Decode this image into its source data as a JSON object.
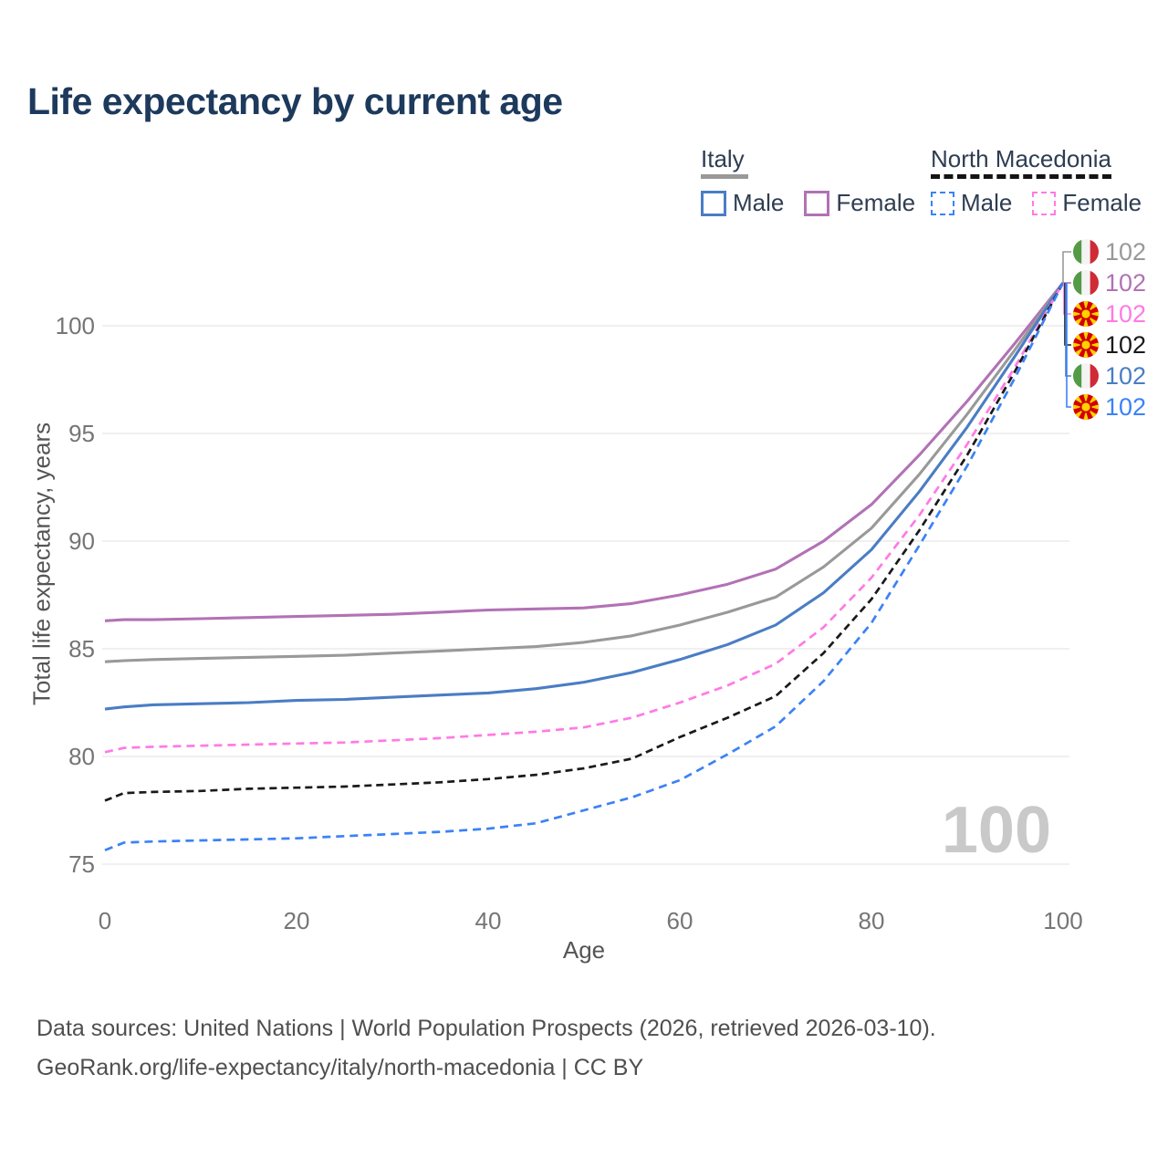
{
  "title": "Life expectancy by current age",
  "axes": {
    "x_label": "Age",
    "y_label": "Total life expectancy, years"
  },
  "watermark": "100",
  "footer": {
    "line1": "Data sources: United Nations | World Population Prospects (2026, retrieved 2026-03-10).",
    "line2": "GeoRank.org/life-expectancy/italy/north-macedonia | CC BY"
  },
  "colors": {
    "title": "#1d3a5c",
    "grid": "#ececec",
    "tick": "#757575",
    "italy_male": "#4a7dc4",
    "italy_female": "#b272b5",
    "italy_all": "#999999",
    "nm_male": "#3b82f6",
    "nm_female": "#ff7ae5",
    "nm_all": "#1a1a1a",
    "watermark": "#c9c9c9"
  },
  "legend": {
    "groups": [
      {
        "label": "Italy",
        "underline_color": "#999999",
        "underline_dashed": false,
        "underline_width": 52,
        "items": [
          {
            "label": "Male",
            "color": "#4a7dc4",
            "dashed": false
          },
          {
            "label": "Female",
            "color": "#b272b5",
            "dashed": false
          }
        ]
      },
      {
        "label": "North Macedonia",
        "underline_color": "#141414",
        "underline_dashed": true,
        "underline_width": 198,
        "items": [
          {
            "label": "Male",
            "color": "#3b82f6",
            "dashed": true
          },
          {
            "label": "Female",
            "color": "#ff7ae5",
            "dashed": true
          }
        ]
      }
    ]
  },
  "end_labels": [
    {
      "flag": "italy",
      "value": "102",
      "color": "#999999"
    },
    {
      "flag": "italy",
      "value": "102",
      "color": "#b272b5"
    },
    {
      "flag": "north-macedonia",
      "value": "102",
      "color": "#ff7ae5"
    },
    {
      "flag": "north-macedonia",
      "value": "102",
      "color": "#1a1a1a"
    },
    {
      "flag": "italy",
      "value": "102",
      "color": "#4a7dc4"
    },
    {
      "flag": "north-macedonia",
      "value": "102",
      "color": "#3b82f6"
    }
  ],
  "chart_data": {
    "type": "line",
    "title": "Life expectancy by current age",
    "xlabel": "Age",
    "ylabel": "Total life expectancy, years",
    "xlim": [
      0,
      100
    ],
    "ylim": [
      74.5,
      103
    ],
    "xticks": [
      0,
      20,
      40,
      60,
      80,
      100
    ],
    "yticks": [
      75,
      80,
      85,
      90,
      95,
      100
    ],
    "grid": true,
    "legend_position": "top-right",
    "x": [
      0,
      2,
      5,
      10,
      15,
      20,
      25,
      30,
      35,
      40,
      45,
      50,
      55,
      60,
      65,
      70,
      75,
      80,
      85,
      90,
      95,
      100
    ],
    "series": [
      {
        "name": "Italy Female",
        "country": "italy",
        "sex": "female",
        "color": "#b272b5",
        "dashed": false,
        "values": [
          86.3,
          86.35,
          86.35,
          86.4,
          86.45,
          86.5,
          86.55,
          86.6,
          86.7,
          86.8,
          86.85,
          86.9,
          87.1,
          87.5,
          88.0,
          88.7,
          90.0,
          91.7,
          94.0,
          96.5,
          99.2,
          102
        ]
      },
      {
        "name": "Italy",
        "country": "italy",
        "sex": "all",
        "color": "#999999",
        "dashed": false,
        "values": [
          84.4,
          84.45,
          84.5,
          84.55,
          84.6,
          84.65,
          84.7,
          84.8,
          84.9,
          85.0,
          85.1,
          85.3,
          85.6,
          86.1,
          86.7,
          87.4,
          88.8,
          90.6,
          93.1,
          95.9,
          98.9,
          102
        ]
      },
      {
        "name": "Italy Male",
        "country": "italy",
        "sex": "male",
        "color": "#4a7dc4",
        "dashed": false,
        "values": [
          82.2,
          82.3,
          82.4,
          82.45,
          82.5,
          82.6,
          82.65,
          82.75,
          82.85,
          82.95,
          83.15,
          83.45,
          83.9,
          84.5,
          85.2,
          86.1,
          87.6,
          89.6,
          92.3,
          95.3,
          98.6,
          102
        ]
      },
      {
        "name": "North Macedonia Female",
        "country": "north-macedonia",
        "sex": "female",
        "color": "#ff7ae5",
        "dashed": true,
        "values": [
          80.2,
          80.4,
          80.45,
          80.5,
          80.55,
          80.6,
          80.65,
          80.75,
          80.85,
          81.0,
          81.15,
          81.35,
          81.8,
          82.5,
          83.3,
          84.3,
          86.0,
          88.3,
          91.2,
          94.5,
          98.1,
          102
        ]
      },
      {
        "name": "North Macedonia",
        "country": "north-macedonia",
        "sex": "all",
        "color": "#1a1a1a",
        "dashed": true,
        "values": [
          77.95,
          78.3,
          78.35,
          78.4,
          78.5,
          78.55,
          78.6,
          78.7,
          78.8,
          78.95,
          79.15,
          79.45,
          79.9,
          80.9,
          81.8,
          82.8,
          84.8,
          87.3,
          90.5,
          94.0,
          97.9,
          102
        ]
      },
      {
        "name": "North Macedonia Male",
        "country": "north-macedonia",
        "sex": "male",
        "color": "#3b82f6",
        "dashed": true,
        "values": [
          75.65,
          76.0,
          76.05,
          76.1,
          76.15,
          76.2,
          76.3,
          76.4,
          76.5,
          76.65,
          76.9,
          77.5,
          78.1,
          78.9,
          80.1,
          81.4,
          83.5,
          86.2,
          89.8,
          93.5,
          97.6,
          102
        ]
      }
    ]
  }
}
